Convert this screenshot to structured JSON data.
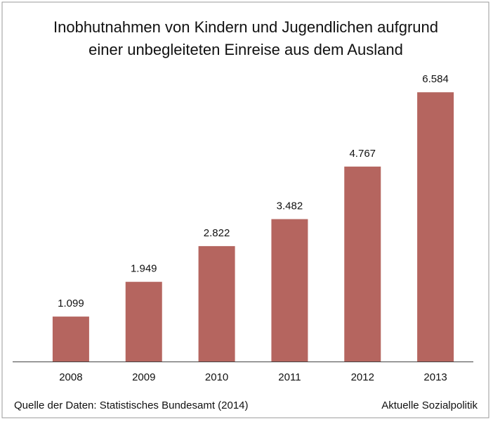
{
  "chart_data": {
    "type": "bar",
    "title": [
      "Inobhutnahmen von Kindern und Jugendlichen aufgrund",
      "einer unbegleiteten Einreise aus dem Ausland"
    ],
    "categories": [
      "2008",
      "2009",
      "2010",
      "2011",
      "2012",
      "2013"
    ],
    "values": [
      1099,
      1949,
      2822,
      3482,
      4767,
      6584
    ],
    "value_labels": [
      "1.099",
      "1.949",
      "2.822",
      "3.482",
      "4.767",
      "6.584"
    ],
    "color": "#b5655f",
    "ylim": [
      0,
      7000
    ],
    "source": "Quelle der Daten: Statistisches Bundesamt (2014)",
    "credit": "Aktuelle Sozialpolitik"
  }
}
